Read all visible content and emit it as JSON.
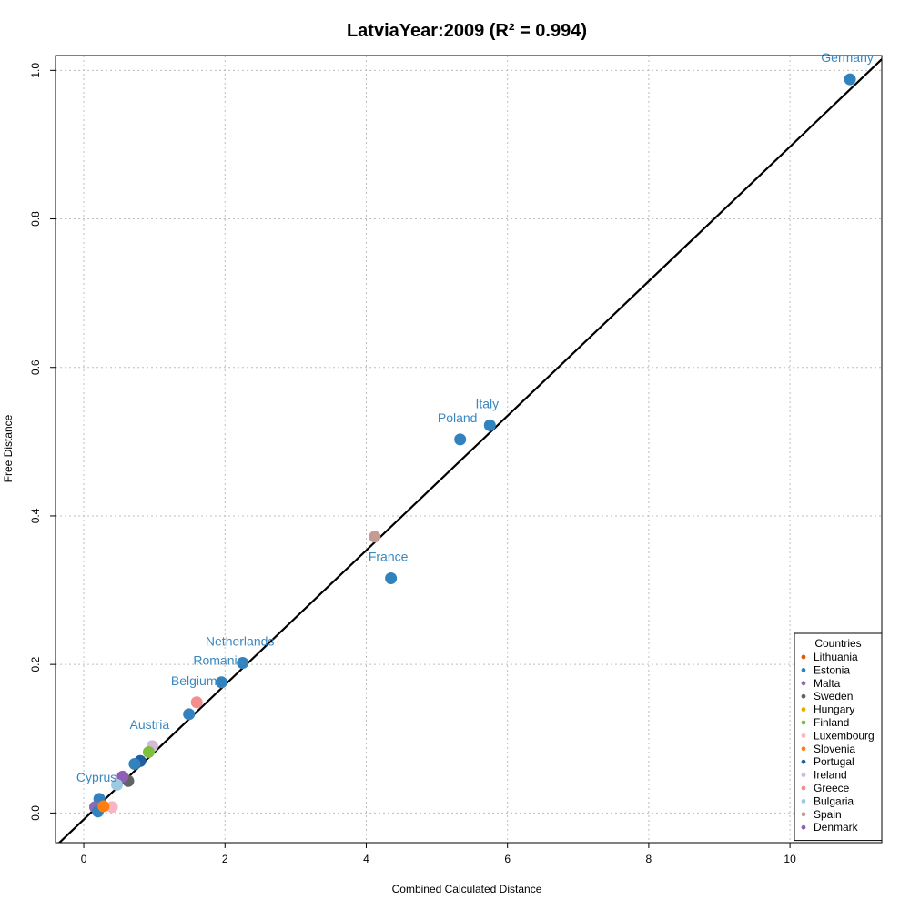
{
  "chart_data": {
    "type": "scatter",
    "title": "LatviaYear:2009 (R² = 0.994)",
    "xlabel": "Combined Calculated Distance",
    "ylabel": "Free Distance",
    "xlim": [
      -0.4,
      11.3
    ],
    "ylim": [
      -0.04,
      1.02
    ],
    "x_ticks": [
      0,
      2,
      4,
      6,
      8,
      10
    ],
    "y_ticks": [
      0.0,
      0.2,
      0.4,
      0.6,
      0.8,
      1.0
    ],
    "x_tick_labels": [
      "0",
      "2",
      "4",
      "6",
      "8",
      "10"
    ],
    "y_tick_labels": [
      "0.0",
      "0.2",
      "0.4",
      "0.6",
      "0.8",
      "1.0"
    ],
    "grid": true,
    "fit_line": {
      "x": [
        -0.4,
        11.3
      ],
      "y": [
        -0.045,
        1.015
      ],
      "color": "#000000"
    },
    "legend": {
      "title": "Countries",
      "placement": "bottom-right",
      "entries": [
        {
          "name": "Lithuania",
          "color": "#d95f02"
        },
        {
          "name": "Estonia",
          "color": "#3182bd"
        },
        {
          "name": "Malta",
          "color": "#8c6bb1"
        },
        {
          "name": "Sweden",
          "color": "#636363"
        },
        {
          "name": "Hungary",
          "color": "#e6ab02"
        },
        {
          "name": "Finland",
          "color": "#7fbf3f"
        },
        {
          "name": "Luxembourg",
          "color": "#fbb4c4"
        },
        {
          "name": "Slovenia",
          "color": "#ff7f0e"
        },
        {
          "name": "Portugal",
          "color": "#1f5fa0"
        },
        {
          "name": "Ireland",
          "color": "#d4b9da"
        },
        {
          "name": "Greece",
          "color": "#f28e8e"
        },
        {
          "name": "Bulgaria",
          "color": "#9ecae1"
        },
        {
          "name": "Spain",
          "color": "#c49c94"
        },
        {
          "name": "Denmark",
          "color": "#8e5fb4"
        }
      ]
    },
    "points": [
      {
        "x": 10.85,
        "y": 0.988,
        "color": "#3182bd",
        "label": "Germany"
      },
      {
        "x": 5.75,
        "y": 0.522,
        "color": "#3182bd",
        "label": "Italy"
      },
      {
        "x": 5.33,
        "y": 0.503,
        "color": "#3182bd",
        "label": "Poland"
      },
      {
        "x": 4.12,
        "y": 0.372,
        "color": "#c49c94",
        "label": ""
      },
      {
        "x": 4.35,
        "y": 0.316,
        "color": "#3182bd",
        "label": "France"
      },
      {
        "x": 2.25,
        "y": 0.202,
        "color": "#3182bd",
        "label": "Netherlands"
      },
      {
        "x": 1.95,
        "y": 0.176,
        "color": "#3182bd",
        "label": "Romania"
      },
      {
        "x": 1.6,
        "y": 0.149,
        "color": "#f28e8e",
        "label": "Belgium"
      },
      {
        "x": 1.49,
        "y": 0.133,
        "color": "#3182bd",
        "label": ""
      },
      {
        "x": 0.97,
        "y": 0.09,
        "color": "#d4b9da",
        "label": "Austria"
      },
      {
        "x": 0.92,
        "y": 0.082,
        "color": "#7fbf3f",
        "label": ""
      },
      {
        "x": 0.8,
        "y": 0.07,
        "color": "#1f5fa0",
        "label": ""
      },
      {
        "x": 0.72,
        "y": 0.066,
        "color": "#3182bd",
        "label": ""
      },
      {
        "x": 0.63,
        "y": 0.043,
        "color": "#636363",
        "label": ""
      },
      {
        "x": 0.55,
        "y": 0.049,
        "color": "#8e5fb4",
        "label": ""
      },
      {
        "x": 0.47,
        "y": 0.038,
        "color": "#9ecae1",
        "label": ""
      },
      {
        "x": 0.22,
        "y": 0.019,
        "color": "#3182bd",
        "label": "Cyprus"
      },
      {
        "x": 0.4,
        "y": 0.008,
        "color": "#fbb4c4",
        "label": ""
      },
      {
        "x": 0.16,
        "y": 0.008,
        "color": "#8c6bb1",
        "label": ""
      },
      {
        "x": 0.2,
        "y": 0.002,
        "color": "#3182bd",
        "label": ""
      },
      {
        "x": 0.28,
        "y": 0.009,
        "color": "#ff7f0e",
        "label": ""
      }
    ]
  }
}
